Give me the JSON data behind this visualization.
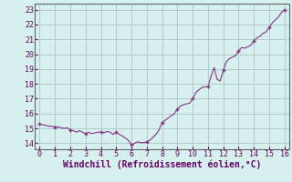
{
  "xlabel": "Windchill (Refroidissement éolien,°C)",
  "bg_color": "#d6f0ee",
  "grid_color": "#b0ccc8",
  "line_color": "#883388",
  "marker_color": "#883388",
  "xlim": [
    -0.3,
    16.3
  ],
  "ylim": [
    13.6,
    23.4
  ],
  "xticks": [
    0,
    1,
    2,
    3,
    4,
    5,
    6,
    7,
    8,
    9,
    10,
    11,
    12,
    13,
    14,
    15,
    16
  ],
  "yticks": [
    14,
    15,
    16,
    17,
    18,
    19,
    20,
    21,
    22,
    23
  ],
  "x_data": [
    0.0,
    0.2,
    0.4,
    0.6,
    0.8,
    1.0,
    1.2,
    1.4,
    1.6,
    1.8,
    2.0,
    2.2,
    2.4,
    2.6,
    2.8,
    3.0,
    3.2,
    3.4,
    3.6,
    3.8,
    4.0,
    4.2,
    4.4,
    4.6,
    4.8,
    5.0,
    5.2,
    5.4,
    5.6,
    5.8,
    6.0,
    6.2,
    6.4,
    6.6,
    6.8,
    7.0,
    7.2,
    7.4,
    7.6,
    7.8,
    8.0,
    8.2,
    8.4,
    8.6,
    8.8,
    9.0,
    9.2,
    9.4,
    9.6,
    9.8,
    10.0,
    10.2,
    10.4,
    10.6,
    10.8,
    11.0,
    11.2,
    11.4,
    11.6,
    11.8,
    12.0,
    12.2,
    12.4,
    12.6,
    12.8,
    13.0,
    13.2,
    13.4,
    13.6,
    13.8,
    14.0,
    14.2,
    14.4,
    14.6,
    14.8,
    15.0,
    15.2,
    15.4,
    15.6,
    15.8,
    16.0
  ],
  "y_data": [
    15.3,
    15.25,
    15.2,
    15.15,
    15.15,
    15.1,
    15.1,
    15.05,
    15.0,
    15.05,
    14.9,
    14.85,
    14.75,
    14.85,
    14.75,
    14.65,
    14.75,
    14.65,
    14.7,
    14.75,
    14.75,
    14.7,
    14.8,
    14.75,
    14.6,
    14.75,
    14.6,
    14.5,
    14.35,
    14.2,
    13.9,
    14.0,
    14.1,
    14.05,
    14.05,
    14.1,
    14.2,
    14.4,
    14.6,
    14.9,
    15.4,
    15.55,
    15.7,
    15.85,
    16.0,
    16.3,
    16.5,
    16.6,
    16.65,
    16.7,
    17.0,
    17.4,
    17.6,
    17.75,
    17.8,
    17.8,
    18.5,
    19.1,
    18.3,
    18.2,
    18.9,
    19.5,
    19.7,
    19.8,
    19.9,
    20.2,
    20.45,
    20.4,
    20.5,
    20.6,
    20.9,
    21.1,
    21.2,
    21.4,
    21.5,
    21.8,
    22.1,
    22.3,
    22.5,
    22.8,
    23.0
  ],
  "marker_x": [
    0,
    1,
    2,
    3,
    4,
    5,
    6,
    7,
    8,
    9,
    10,
    11,
    12,
    13,
    14,
    15,
    16
  ],
  "marker_y": [
    15.3,
    15.1,
    14.9,
    14.65,
    14.75,
    14.75,
    13.9,
    14.1,
    15.4,
    16.3,
    17.0,
    17.8,
    18.9,
    20.2,
    20.9,
    21.8,
    23.0
  ],
  "font_color": "#660066",
  "tick_fontsize": 6.0,
  "label_fontsize": 7.0
}
